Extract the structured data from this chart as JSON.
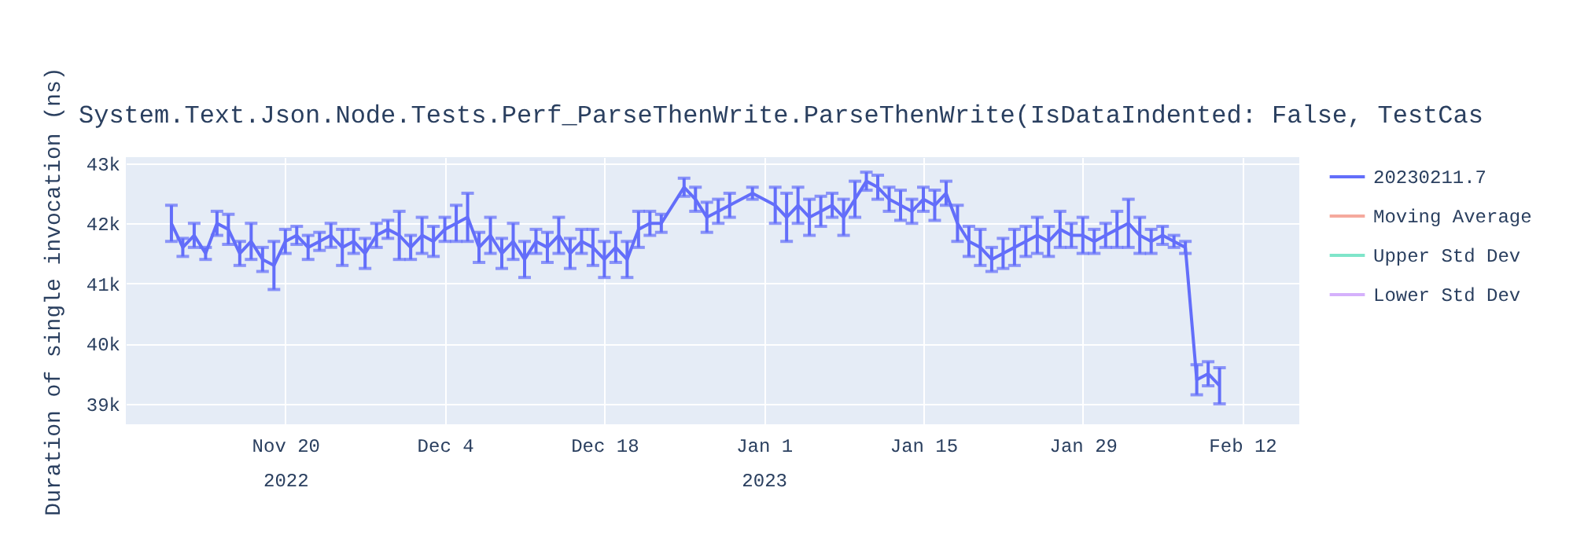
{
  "chart_data": {
    "type": "line",
    "title": "System.Text.Json.Node.Tests.Perf_ParseThenWrite.ParseThenWrite(IsDataIndented: False, TestCas",
    "ylabel": "Duration of single invocation (ns)",
    "xlim": [
      "2022-11-06",
      "2023-02-17"
    ],
    "xticks": [
      {
        "value": "2022-11-20",
        "label": "Nov 20\n2022"
      },
      {
        "value": "2022-12-04",
        "label": "Dec 4"
      },
      {
        "value": "2022-12-18",
        "label": "Dec 18"
      },
      {
        "value": "2023-01-01",
        "label": "Jan 1\n2023"
      },
      {
        "value": "2023-01-15",
        "label": "Jan 15"
      },
      {
        "value": "2023-01-29",
        "label": "Jan 29"
      },
      {
        "value": "2023-02-12",
        "label": "Feb 12"
      }
    ],
    "ylim": [
      38660,
      43100
    ],
    "yticks": [
      {
        "value": 39000,
        "label": "39k"
      },
      {
        "value": 40000,
        "label": "40k"
      },
      {
        "value": 41000,
        "label": "41k"
      },
      {
        "value": 42000,
        "label": "42k"
      },
      {
        "value": 43000,
        "label": "43k"
      }
    ],
    "grid": true,
    "legend": "top right",
    "x": [
      "2022-11-10",
      "2022-11-11",
      "2022-11-12",
      "2022-11-13",
      "2022-11-14",
      "2022-11-15",
      "2022-11-16",
      "2022-11-17",
      "2022-11-18",
      "2022-11-19",
      "2022-11-20",
      "2022-11-21",
      "2022-11-22",
      "2022-11-23",
      "2022-11-24",
      "2022-11-25",
      "2022-11-26",
      "2022-11-27",
      "2022-11-28",
      "2022-11-29",
      "2022-11-30",
      "2022-12-01",
      "2022-12-02",
      "2022-12-03",
      "2022-12-04",
      "2022-12-05",
      "2022-12-06",
      "2022-12-07",
      "2022-12-08",
      "2022-12-09",
      "2022-12-10",
      "2022-12-11",
      "2022-12-12",
      "2022-12-13",
      "2022-12-14",
      "2022-12-15",
      "2022-12-16",
      "2022-12-17",
      "2022-12-18",
      "2022-12-19",
      "2022-12-20",
      "2022-12-21",
      "2022-12-22",
      "2022-12-23",
      "2022-12-25",
      "2022-12-26",
      "2022-12-27",
      "2022-12-28",
      "2022-12-29",
      "2022-12-31",
      "2023-01-02",
      "2023-01-03",
      "2023-01-04",
      "2023-01-05",
      "2023-01-06",
      "2023-01-07",
      "2023-01-08",
      "2023-01-09",
      "2023-01-10",
      "2023-01-11",
      "2023-01-12",
      "2023-01-13",
      "2023-01-14",
      "2023-01-15",
      "2023-01-16",
      "2023-01-17",
      "2023-01-18",
      "2023-01-19",
      "2023-01-20",
      "2023-01-21",
      "2023-01-22",
      "2023-01-23",
      "2023-01-24",
      "2023-01-25",
      "2023-01-26",
      "2023-01-27",
      "2023-01-28",
      "2023-01-29",
      "2023-01-30",
      "2023-01-31",
      "2023-02-01",
      "2023-02-02",
      "2023-02-03",
      "2023-02-04",
      "2023-02-05",
      "2023-02-06",
      "2023-02-07",
      "2023-02-08",
      "2023-02-09",
      "2023-02-10"
    ],
    "series": [
      {
        "name": "20230211.7",
        "color": "#636efa",
        "values": [
          42000,
          41600,
          41800,
          41500,
          42000,
          41900,
          41500,
          41700,
          41400,
          41300,
          41700,
          41800,
          41600,
          41700,
          41800,
          41600,
          41700,
          41500,
          41800,
          41900,
          41800,
          41600,
          41800,
          41700,
          41900,
          42000,
          42100,
          41600,
          41800,
          41500,
          41700,
          41400,
          41700,
          41600,
          41800,
          41500,
          41700,
          41600,
          41400,
          41600,
          41400,
          41900,
          42000,
          42000,
          42600,
          42400,
          42100,
          42200,
          42300,
          42500,
          42300,
          42100,
          42300,
          42100,
          42200,
          42300,
          42100,
          42400,
          42700,
          42600,
          42400,
          42300,
          42200,
          42400,
          42300,
          42500,
          42000,
          41700,
          41600,
          41400,
          41500,
          41600,
          41700,
          41800,
          41700,
          41900,
          41800,
          41800,
          41700,
          41800,
          41900,
          42000,
          41800,
          41700,
          41800,
          41700,
          41600,
          39400,
          39500,
          39300
        ],
        "errors": [
          300,
          150,
          200,
          100,
          200,
          250,
          200,
          300,
          200,
          400,
          200,
          150,
          200,
          150,
          200,
          300,
          200,
          250,
          200,
          150,
          400,
          200,
          300,
          250,
          200,
          300,
          400,
          250,
          300,
          250,
          300,
          300,
          200,
          250,
          300,
          250,
          200,
          300,
          300,
          250,
          300,
          300,
          200,
          150,
          150,
          200,
          250,
          200,
          200,
          100,
          300,
          400,
          300,
          300,
          250,
          200,
          300,
          300,
          150,
          200,
          200,
          250,
          200,
          200,
          250,
          200,
          300,
          250,
          300,
          200,
          250,
          300,
          250,
          300,
          250,
          300,
          200,
          300,
          200,
          200,
          300,
          400,
          300,
          200,
          150,
          100,
          100,
          250,
          200,
          300
        ]
      },
      {
        "name": "Moving Average",
        "color": "#f5a99d",
        "values": [
          null,
          null,
          null,
          null,
          null,
          null,
          null,
          null,
          null,
          null,
          null,
          null,
          null,
          null,
          null,
          null,
          null,
          null,
          null,
          null,
          null,
          null,
          null,
          null,
          null,
          null,
          null,
          null,
          null,
          null,
          null,
          null,
          null,
          null,
          null,
          null,
          null,
          null,
          null,
          null,
          null,
          null,
          null,
          null,
          null,
          null,
          null,
          null,
          null,
          null,
          null,
          null,
          null,
          null,
          null,
          null,
          null,
          null,
          null,
          null,
          null,
          null,
          null,
          null,
          null,
          null,
          null,
          null,
          null,
          null,
          null,
          null,
          null,
          null,
          null,
          null,
          null,
          null,
          null,
          null,
          null,
          null,
          null,
          null,
          null,
          null,
          null,
          null,
          null,
          null
        ]
      },
      {
        "name": "Upper Std Dev",
        "color": "#7fe5ca",
        "values": [
          null,
          null,
          null,
          null,
          null,
          null,
          null,
          null,
          null,
          null,
          null,
          null,
          null,
          null,
          null,
          null,
          null,
          null,
          null,
          null,
          null,
          null,
          null,
          null,
          null,
          null,
          null,
          null,
          null,
          null,
          null,
          null,
          null,
          null,
          null,
          null,
          null,
          null,
          null,
          null,
          null,
          null,
          null,
          null,
          null,
          null,
          null,
          null,
          null,
          null,
          null,
          null,
          null,
          null,
          null,
          null,
          null,
          null,
          null,
          null,
          null,
          null,
          null,
          null,
          null,
          null,
          null,
          null,
          null,
          null,
          null,
          null,
          null,
          null,
          null,
          null,
          null,
          null,
          null,
          null,
          null,
          null,
          null,
          null,
          null,
          null,
          null,
          null,
          null,
          null
        ]
      },
      {
        "name": "Lower Std Dev",
        "color": "#d5b1fc",
        "values": [
          null,
          null,
          null,
          null,
          null,
          null,
          null,
          null,
          null,
          null,
          null,
          null,
          null,
          null,
          null,
          null,
          null,
          null,
          null,
          null,
          null,
          null,
          null,
          null,
          null,
          null,
          null,
          null,
          null,
          null,
          null,
          null,
          null,
          null,
          null,
          null,
          null,
          null,
          null,
          null,
          null,
          null,
          null,
          null,
          null,
          null,
          null,
          null,
          null,
          null,
          null,
          null,
          null,
          null,
          null,
          null,
          null,
          null,
          null,
          null,
          null,
          null,
          null,
          null,
          null,
          null,
          null,
          null,
          null,
          null,
          null,
          null,
          null,
          null,
          null,
          null,
          null,
          null,
          null,
          null,
          null,
          null,
          null,
          null,
          null,
          null,
          null,
          null,
          null,
          null
        ]
      }
    ]
  }
}
